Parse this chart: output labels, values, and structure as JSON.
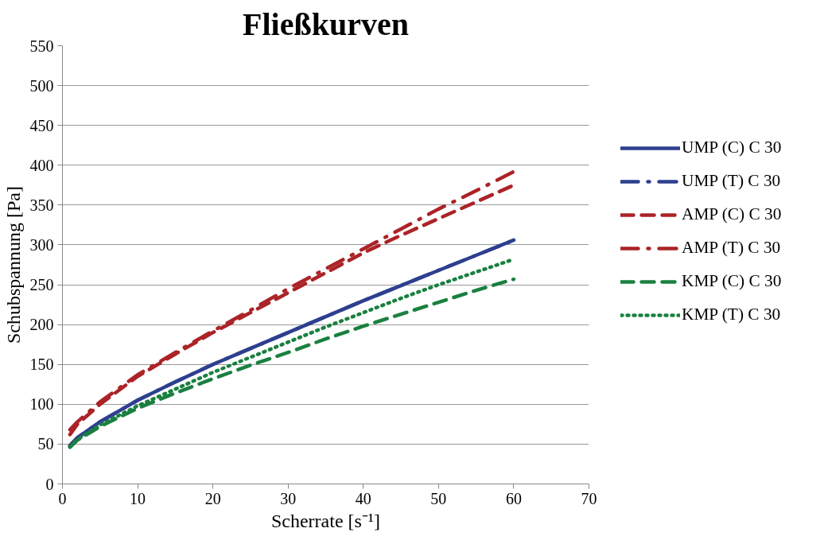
{
  "chart_data": {
    "type": "line",
    "title": "Fließkurven",
    "xlabel": "Scherrate [s⁻¹]",
    "ylabel": "Schubspannung [Pa]",
    "x": [
      1,
      2,
      5,
      10,
      15,
      20,
      25,
      30,
      35,
      40,
      45,
      50,
      55,
      60
    ],
    "series": [
      {
        "name": "UMP (C) C 30",
        "color": "#2e3f8f",
        "line_style": "solid",
        "values": [
          48,
          58,
          78,
          105,
          128,
          150,
          170,
          190,
          210,
          230,
          249,
          268,
          287,
          306
        ]
      },
      {
        "name": "UMP (T) C 30",
        "color": "#2e3f8f",
        "line_style": "dashdot",
        "values": [
          48,
          58,
          78,
          105,
          128,
          150,
          170,
          190,
          210,
          230,
          249,
          268,
          287,
          306
        ]
      },
      {
        "name": "AMP (C) C 30",
        "color": "#ab2328",
        "line_style": "dashed",
        "values": [
          62,
          75,
          100,
          135,
          163,
          190,
          215,
          240,
          265,
          290,
          312,
          333,
          354,
          375
        ]
      },
      {
        "name": "AMP (T) C 30",
        "color": "#ab2328",
        "line_style": "dashdot",
        "values": [
          68,
          78,
          103,
          137,
          165,
          192,
          218,
          245,
          270,
          295,
          320,
          345,
          368,
          392
        ]
      },
      {
        "name": "KMP (C) C 30",
        "color": "#1a8040",
        "line_style": "dashed",
        "values": [
          46,
          55,
          72,
          95,
          114,
          132,
          149,
          165,
          182,
          198,
          213,
          228,
          243,
          257
        ]
      },
      {
        "name": "KMP (T) C 30",
        "color": "#1a8040",
        "line_style": "dotted",
        "values": [
          47,
          56,
          74,
          98,
          119,
          140,
          159,
          178,
          197,
          215,
          233,
          250,
          266,
          282
        ]
      }
    ],
    "xlim": [
      0,
      70
    ],
    "xticks": [
      0,
      10,
      20,
      30,
      40,
      50,
      60,
      70
    ],
    "ylim": [
      0,
      550
    ],
    "yticks": [
      0,
      50,
      100,
      150,
      200,
      250,
      300,
      350,
      400,
      450,
      500,
      550
    ],
    "grid": "y",
    "legend": "right",
    "marker": "none"
  }
}
